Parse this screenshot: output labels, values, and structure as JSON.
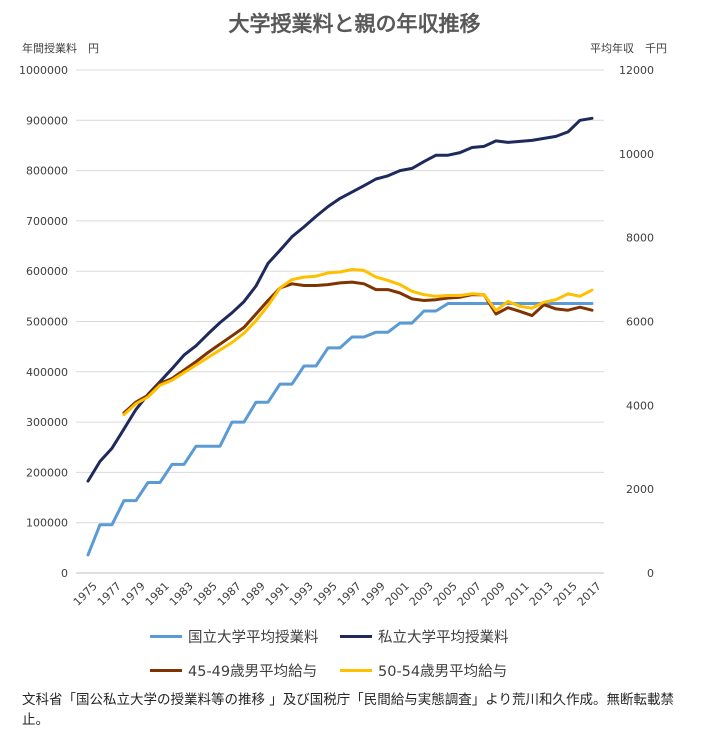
{
  "chart_data": {
    "type": "line",
    "title": "大学授業料と親の年収推移",
    "ylabel_left": "年間授業料　円",
    "ylabel_right": "平均年収　千円",
    "ylim_left": [
      0,
      1000000
    ],
    "ylim_right": [
      0,
      12000
    ],
    "yticks_left": [
      "0",
      "100000",
      "200000",
      "300000",
      "400000",
      "500000",
      "600000",
      "700000",
      "800000",
      "900000",
      "1000000"
    ],
    "yticks_right": [
      "0",
      "2000",
      "4000",
      "6000",
      "8000",
      "10000",
      "12000"
    ],
    "xticks": [
      "1975",
      "1977",
      "1979",
      "1981",
      "1983",
      "1985",
      "1987",
      "1989",
      "1991",
      "1993",
      "1995",
      "1997",
      "1999",
      "2001",
      "2003",
      "2005",
      "2007",
      "2009",
      "2011",
      "2013",
      "2015",
      "2017"
    ],
    "x": [
      1975,
      1976,
      1977,
      1978,
      1979,
      1980,
      1981,
      1982,
      1983,
      1984,
      1985,
      1986,
      1987,
      1988,
      1989,
      1990,
      1991,
      1992,
      1993,
      1994,
      1995,
      1996,
      1997,
      1998,
      1999,
      2000,
      2001,
      2002,
      2003,
      2004,
      2005,
      2006,
      2007,
      2008,
      2009,
      2010,
      2011,
      2012,
      2013,
      2014,
      2015,
      2016,
      2017
    ],
    "grid": true,
    "legend_position": "bottom",
    "series": [
      {
        "name": "国立大学平均授業料",
        "axis": "left",
        "color": "#5b9bd5",
        "values": [
          36000,
          96000,
          96000,
          144000,
          144000,
          180000,
          180000,
          216000,
          216000,
          252000,
          252000,
          252000,
          300000,
          300000,
          339600,
          339600,
          375600,
          375600,
          411600,
          411600,
          447600,
          447600,
          469200,
          469200,
          478800,
          478800,
          496800,
          496800,
          520800,
          520800,
          535800,
          535800,
          535800,
          535800,
          535800,
          535800,
          535800,
          535800,
          535800,
          535800,
          535800,
          535800,
          535800
        ]
      },
      {
        "name": "私立大学平均授業料",
        "axis": "left",
        "color": "#1f2a5c",
        "values": [
          182677,
          221844,
          248066,
          286568,
          325198,
          355156,
          380253,
          406261,
          433200,
          451722,
          475325,
          497826,
          517395,
          539591,
          570584,
          615486,
          641608,
          668552,
          688046,
          708847,
          728365,
          744733,
          757158,
          770024,
          783298,
          789659,
          799973,
          804367,
          817952,
          830583,
          830583,
          835800,
          846000,
          848178,
          859000,
          856000,
          858000,
          860000,
          864000,
          868000,
          877000,
          900000,
          904000
        ]
      },
      {
        "name": "45-49歳男平均給与",
        "axis": "right",
        "color": "#7f3300",
        "values": [
          null,
          null,
          null,
          3820,
          4080,
          4240,
          4520,
          4640,
          4840,
          5040,
          5260,
          5460,
          5660,
          5860,
          6180,
          6500,
          6800,
          6900,
          6860,
          6860,
          6880,
          6920,
          6940,
          6900,
          6760,
          6760,
          6680,
          6540,
          6500,
          6520,
          6560,
          6580,
          6640,
          6640,
          6180,
          6330,
          6240,
          6140,
          6400,
          6300,
          6270,
          6340,
          6270
        ]
      },
      {
        "name": "50-54歳男平均給与",
        "axis": "right",
        "color": "#ffc000",
        "values": [
          null,
          null,
          null,
          3780,
          4040,
          4200,
          4480,
          4600,
          4780,
          4960,
          5140,
          5320,
          5500,
          5720,
          6020,
          6380,
          6800,
          7000,
          7060,
          7080,
          7160,
          7180,
          7240,
          7220,
          7060,
          6980,
          6880,
          6720,
          6640,
          6600,
          6620,
          6620,
          6660,
          6640,
          6260,
          6480,
          6360,
          6320,
          6460,
          6520,
          6660,
          6600,
          6750
        ]
      }
    ]
  },
  "note": "文科省「国公私立大学の授業料等の推移 」及び国税庁「民間給与実態調査」より荒川和久作成。無断転載禁止。"
}
